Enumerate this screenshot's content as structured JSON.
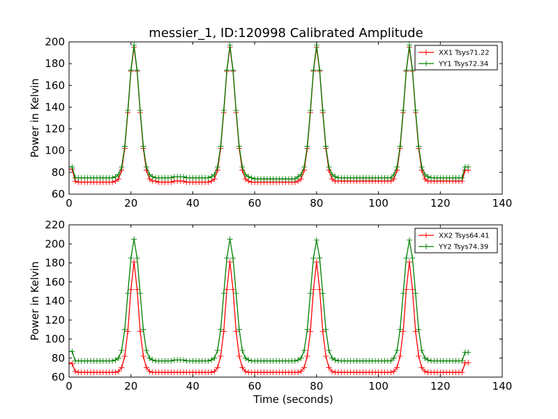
{
  "title": "messier_1, ID:120998 Calibrated Amplitude",
  "colors": {
    "xx": "#ff0000",
    "yy": "#007f00",
    "axis": "#000000",
    "background": "#ffffff"
  },
  "chart_data": [
    {
      "type": "line",
      "title": "messier_1, ID:120998 Calibrated Amplitude",
      "xlabel": "",
      "ylabel": "Power in Kelvin",
      "xlim": [
        0,
        140
      ],
      "ylim": [
        60,
        200
      ],
      "xticks": [
        0,
        20,
        40,
        60,
        80,
        100,
        120,
        140
      ],
      "yticks": [
        60,
        80,
        100,
        120,
        140,
        160,
        180,
        200
      ],
      "grid": false,
      "legend_position": "top-right",
      "marker": "plus",
      "x": [
        0,
        1,
        2,
        3,
        4,
        5,
        6,
        7,
        8,
        9,
        10,
        11,
        12,
        13,
        14,
        15,
        16,
        17,
        18,
        19,
        20,
        21,
        22,
        23,
        24,
        25,
        26,
        27,
        28,
        29,
        30,
        31,
        32,
        33,
        34,
        35,
        36,
        37,
        38,
        39,
        40,
        41,
        42,
        43,
        44,
        45,
        46,
        47,
        48,
        49,
        50,
        51,
        52,
        53,
        54,
        55,
        56,
        57,
        58,
        59,
        60,
        61,
        62,
        63,
        64,
        65,
        66,
        67,
        68,
        69,
        70,
        71,
        72,
        73,
        74,
        75,
        76,
        77,
        78,
        79,
        80,
        81,
        82,
        83,
        84,
        85,
        86,
        87,
        88,
        89,
        90,
        91,
        92,
        93,
        94,
        95,
        96,
        97,
        98,
        99,
        100,
        101,
        102,
        103,
        104,
        105,
        106,
        107,
        108,
        109,
        110,
        111,
        112,
        113,
        114,
        115,
        116,
        117,
        118,
        119,
        120,
        121,
        122,
        123,
        124,
        125,
        126,
        127,
        128,
        129
      ],
      "series": [
        {
          "name": "XX1 Tsys71.22",
          "color": "#ff0000",
          "values": [
            83,
            83,
            72,
            71,
            71,
            71,
            71,
            71,
            71,
            71,
            71,
            71,
            71,
            71,
            71,
            72,
            74,
            82,
            102,
            135,
            173,
            195,
            173,
            135,
            102,
            82,
            74,
            72,
            72,
            71,
            71,
            71,
            71,
            71,
            72,
            72,
            72,
            72,
            71,
            71,
            71,
            71,
            71,
            71,
            71,
            71,
            72,
            74,
            82,
            102,
            135,
            173,
            195,
            173,
            135,
            102,
            82,
            74,
            72,
            71,
            71,
            71,
            71,
            71,
            71,
            71,
            71,
            71,
            71,
            71,
            71,
            71,
            71,
            71,
            72,
            74,
            82,
            102,
            135,
            173,
            195,
            173,
            135,
            102,
            82,
            74,
            72,
            72,
            72,
            72,
            72,
            72,
            72,
            72,
            72,
            72,
            72,
            72,
            72,
            72,
            72,
            72,
            72,
            72,
            72,
            74,
            82,
            102,
            135,
            173,
            195,
            173,
            135,
            102,
            82,
            74,
            72,
            72,
            72,
            72,
            72,
            72,
            72,
            72,
            72,
            72,
            72,
            72,
            82,
            82
          ]
        },
        {
          "name": "YY1 Tsys72.34",
          "color": "#007f00",
          "values": [
            85,
            85,
            75,
            75,
            75,
            75,
            75,
            75,
            75,
            75,
            75,
            75,
            75,
            75,
            75,
            76,
            78,
            85,
            104,
            137,
            174,
            197,
            174,
            137,
            104,
            85,
            78,
            76,
            75,
            75,
            75,
            75,
            75,
            75,
            76,
            76,
            76,
            76,
            75,
            75,
            75,
            75,
            75,
            75,
            75,
            75,
            76,
            78,
            85,
            104,
            137,
            174,
            197,
            174,
            137,
            104,
            85,
            78,
            76,
            75,
            74,
            74,
            74,
            74,
            74,
            74,
            74,
            74,
            74,
            74,
            74,
            74,
            74,
            74,
            76,
            78,
            85,
            104,
            137,
            174,
            197,
            174,
            137,
            104,
            85,
            78,
            76,
            75,
            75,
            75,
            75,
            75,
            75,
            75,
            75,
            75,
            75,
            75,
            75,
            75,
            75,
            75,
            75,
            75,
            75,
            78,
            85,
            104,
            137,
            174,
            197,
            174,
            137,
            104,
            85,
            78,
            76,
            75,
            75,
            75,
            75,
            75,
            75,
            75,
            75,
            75,
            75,
            75,
            85,
            85
          ]
        }
      ]
    },
    {
      "type": "line",
      "title": "",
      "xlabel": "Time (seconds)",
      "ylabel": "Power in Kelvin",
      "xlim": [
        0,
        140
      ],
      "ylim": [
        60,
        220
      ],
      "xticks": [
        0,
        20,
        40,
        60,
        80,
        100,
        120,
        140
      ],
      "yticks": [
        60,
        80,
        100,
        120,
        140,
        160,
        180,
        200,
        220
      ],
      "grid": false,
      "legend_position": "top-right",
      "marker": "plus",
      "x": [
        0,
        1,
        2,
        3,
        4,
        5,
        6,
        7,
        8,
        9,
        10,
        11,
        12,
        13,
        14,
        15,
        16,
        17,
        18,
        19,
        20,
        21,
        22,
        23,
        24,
        25,
        26,
        27,
        28,
        29,
        30,
        31,
        32,
        33,
        34,
        35,
        36,
        37,
        38,
        39,
        40,
        41,
        42,
        43,
        44,
        45,
        46,
        47,
        48,
        49,
        50,
        51,
        52,
        53,
        54,
        55,
        56,
        57,
        58,
        59,
        60,
        61,
        62,
        63,
        64,
        65,
        66,
        67,
        68,
        69,
        70,
        71,
        72,
        73,
        74,
        75,
        76,
        77,
        78,
        79,
        80,
        81,
        82,
        83,
        84,
        85,
        86,
        87,
        88,
        89,
        90,
        91,
        92,
        93,
        94,
        95,
        96,
        97,
        98,
        99,
        100,
        101,
        102,
        103,
        104,
        105,
        106,
        107,
        108,
        109,
        110,
        111,
        112,
        113,
        114,
        115,
        116,
        117,
        118,
        119,
        120,
        121,
        122,
        123,
        124,
        125,
        126,
        127,
        128,
        129
      ],
      "series": [
        {
          "name": "XX2 Tsys64.41",
          "color": "#ff0000",
          "values": [
            75,
            74,
            66,
            65,
            65,
            65,
            65,
            65,
            65,
            65,
            65,
            65,
            65,
            65,
            65,
            65,
            66,
            70,
            82,
            108,
            152,
            181,
            152,
            108,
            82,
            70,
            66,
            65,
            65,
            65,
            65,
            65,
            65,
            65,
            65,
            65,
            65,
            65,
            65,
            65,
            65,
            65,
            65,
            65,
            65,
            65,
            65,
            66,
            70,
            82,
            108,
            152,
            181,
            152,
            108,
            82,
            70,
            66,
            65,
            65,
            65,
            65,
            65,
            65,
            65,
            65,
            65,
            65,
            65,
            65,
            65,
            65,
            65,
            65,
            65,
            66,
            70,
            82,
            108,
            152,
            181,
            152,
            108,
            82,
            70,
            66,
            65,
            65,
            65,
            65,
            65,
            65,
            65,
            65,
            65,
            65,
            65,
            65,
            65,
            65,
            65,
            65,
            65,
            65,
            65,
            66,
            70,
            82,
            108,
            152,
            181,
            152,
            108,
            82,
            70,
            66,
            65,
            65,
            65,
            65,
            65,
            65,
            65,
            65,
            65,
            65,
            65,
            65,
            75,
            75
          ]
        },
        {
          "name": "YY2 Tsys74.39",
          "color": "#007f00",
          "values": [
            87,
            87,
            77,
            77,
            77,
            77,
            77,
            77,
            77,
            77,
            77,
            77,
            77,
            77,
            77,
            78,
            80,
            88,
            110,
            148,
            185,
            205,
            185,
            148,
            110,
            88,
            80,
            78,
            77,
            77,
            77,
            77,
            77,
            77,
            78,
            78,
            78,
            78,
            77,
            77,
            77,
            77,
            77,
            77,
            77,
            77,
            78,
            80,
            88,
            110,
            148,
            185,
            205,
            185,
            148,
            110,
            88,
            80,
            78,
            77,
            77,
            77,
            77,
            77,
            77,
            77,
            77,
            77,
            77,
            77,
            77,
            77,
            77,
            77,
            78,
            80,
            88,
            110,
            148,
            185,
            204,
            185,
            148,
            110,
            88,
            80,
            78,
            77,
            77,
            77,
            77,
            77,
            77,
            77,
            77,
            77,
            77,
            77,
            77,
            77,
            77,
            77,
            77,
            77,
            77,
            80,
            88,
            110,
            148,
            185,
            204,
            185,
            148,
            110,
            88,
            80,
            78,
            77,
            77,
            77,
            77,
            77,
            77,
            77,
            77,
            77,
            77,
            77,
            86,
            86
          ]
        }
      ]
    }
  ]
}
